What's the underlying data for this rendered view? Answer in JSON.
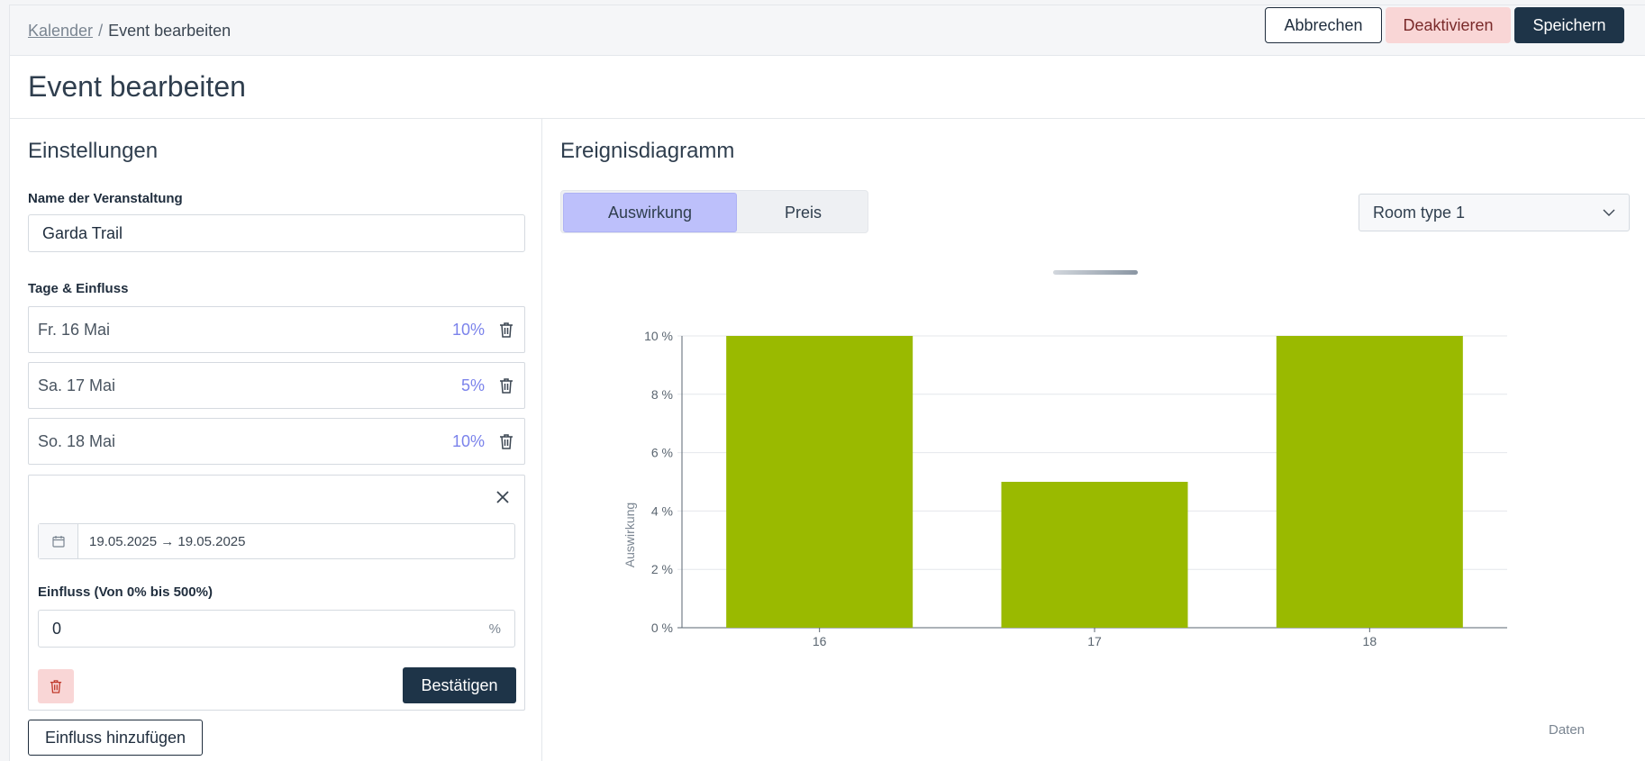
{
  "breadcrumb": {
    "link": "Kalender",
    "separator": "/",
    "current": "Event bearbeiten"
  },
  "actions": {
    "cancel": "Abbrechen",
    "deactivate": "Deaktivieren",
    "save": "Speichern"
  },
  "page_title": "Event bearbeiten",
  "settings": {
    "title": "Einstellungen",
    "name_label": "Name der Veranstaltung",
    "name_value": "Garda Trail",
    "days_label": "Tage & Einfluss",
    "days": [
      {
        "label": "Fr. 16 Mai",
        "pct": "10%"
      },
      {
        "label": "Sa. 17 Mai",
        "pct": "5%"
      },
      {
        "label": "So. 18 Mai",
        "pct": "10%"
      }
    ],
    "editor": {
      "date_range": "19.05.2025 → 19.05.2025",
      "influence_label": "Einfluss (Von 0% bis 500%)",
      "influence_value": "0",
      "unit": "%",
      "confirm": "Bestätigen"
    },
    "add_button": "Einfluss hinzufügen"
  },
  "diagram": {
    "title": "Ereignisdiagramm",
    "tabs": [
      {
        "label": "Auswirkung",
        "active": true
      },
      {
        "label": "Preis",
        "active": false
      }
    ],
    "room_select": "Room type 1"
  },
  "colors": {
    "bar": "#9aba00",
    "accent": "#7b83eb",
    "primary": "#1e3448",
    "danger_bg": "#f9d6d6"
  },
  "chart_data": {
    "type": "bar",
    "categories": [
      "16",
      "17",
      "18"
    ],
    "values": [
      10,
      5,
      10
    ],
    "ylabel": "Auswirkung",
    "xlabel": "Daten",
    "ylim": [
      0,
      10
    ],
    "yticks": [
      "0 %",
      "2 %",
      "4 %",
      "6 %",
      "8 %",
      "10 %"
    ],
    "grid": true
  }
}
